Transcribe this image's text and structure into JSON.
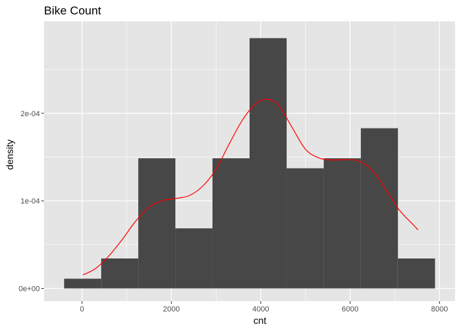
{
  "chart_data": {
    "type": "bar",
    "title": "Bike Count",
    "xlabel": "cnt",
    "ylabel": "density",
    "xlim": [
      -850,
      8350
    ],
    "ylim": [
      -1.45e-05,
      0.000305
    ],
    "x_ticks": [
      0,
      2000,
      4000,
      6000,
      8000
    ],
    "x_tick_labels": [
      "0",
      "2000",
      "4000",
      "6000",
      "8000"
    ],
    "y_ticks": [
      0,
      0.0001,
      0.0002
    ],
    "y_tick_labels": [
      "0e+00",
      "1e-04",
      "2e-04"
    ],
    "grid": true,
    "legend": "none",
    "colors": {
      "panel": "#e5e5e5",
      "grid_major": "#ffffff",
      "bar": "#474747",
      "density_line": "#ff0000"
    },
    "histogram": {
      "bins": [
        {
          "x0": -400,
          "x1": 430,
          "density": 1.11e-05
        },
        {
          "x0": 430,
          "x1": 1260,
          "density": 3.42e-05
        },
        {
          "x0": 1260,
          "x1": 2090,
          "density": 0.0001486
        },
        {
          "x0": 2090,
          "x1": 2920,
          "density": 6.86e-05
        },
        {
          "x0": 2920,
          "x1": 3750,
          "density": 0.0001486
        },
        {
          "x0": 3750,
          "x1": 4580,
          "density": 0.0002858
        },
        {
          "x0": 4580,
          "x1": 5410,
          "density": 0.0001372
        },
        {
          "x0": 5410,
          "x1": 6240,
          "density": 0.0001486
        },
        {
          "x0": 6240,
          "x1": 7070,
          "density": 0.0001829
        },
        {
          "x0": 7070,
          "x1": 7900,
          "density": 3.42e-05
        }
      ]
    },
    "density_curve": {
      "name": "",
      "x": [
        22,
        300,
        600,
        900,
        1200,
        1500,
        1800,
        2100,
        2400,
        2700,
        3000,
        3300,
        3600,
        3900,
        4150,
        4400,
        4700,
        5000,
        5300,
        5600,
        5900,
        6200,
        6500,
        6800,
        7100,
        7400,
        7520
      ],
      "y": [
        1.55e-05,
        2.26e-05,
        3.7e-05,
        5.58e-05,
        7.67e-05,
        9.27e-05,
        0.0001003,
        0.0001027,
        0.000106,
        0.0001167,
        0.0001362,
        0.0001655,
        0.000193,
        0.0002115,
        0.000216,
        0.000209,
        0.000184,
        0.000159,
        0.000149,
        0.0001467,
        0.000147,
        0.0001455,
        0.0001345,
        0.000113,
        8.96e-05,
        7.33e-05,
        6.68e-05
      ]
    }
  }
}
